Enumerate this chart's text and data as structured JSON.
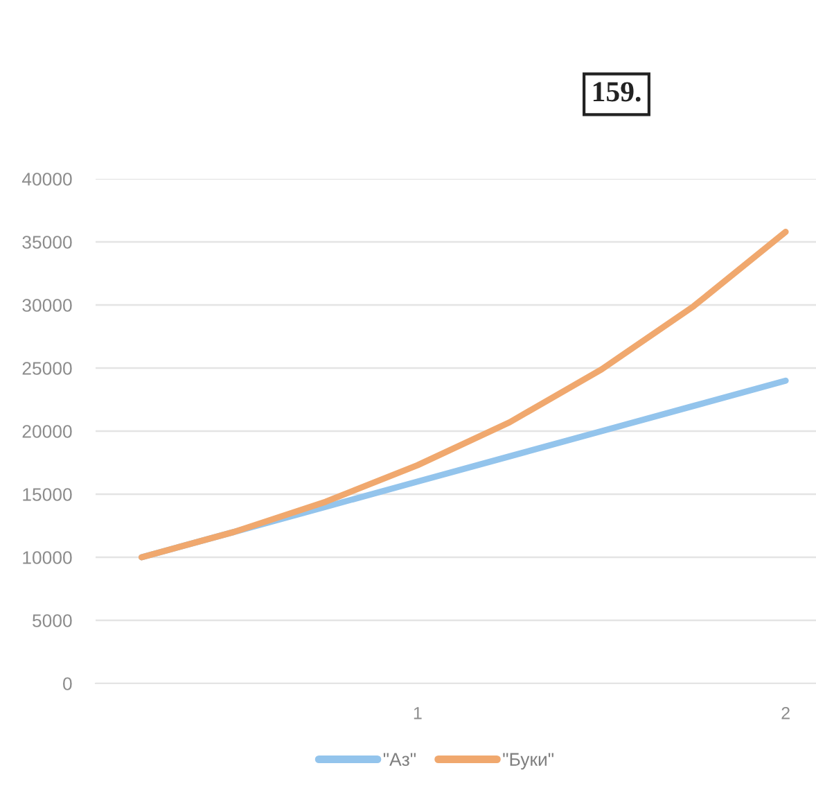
{
  "chart_data": {
    "type": "line",
    "categories": [
      null,
      null,
      null,
      "1",
      null,
      null,
      null,
      "2"
    ],
    "series": [
      {
        "name": "\"Аз\"",
        "color": "#93c4ec",
        "values": [
          10000,
          12000,
          14000,
          16000,
          18000,
          20000,
          22000,
          24000
        ]
      },
      {
        "name": "\"Буки\"",
        "color": "#f0a86e",
        "values": [
          10000,
          12000,
          14400,
          17300,
          20700,
          24900,
          29900,
          35800
        ]
      }
    ],
    "ylim": [
      0,
      40000
    ],
    "yticks": [
      0,
      5000,
      10000,
      15000,
      20000,
      25000,
      30000,
      35000,
      40000
    ],
    "grid": "y",
    "legend": "bottom",
    "annotations": [
      "159."
    ]
  }
}
